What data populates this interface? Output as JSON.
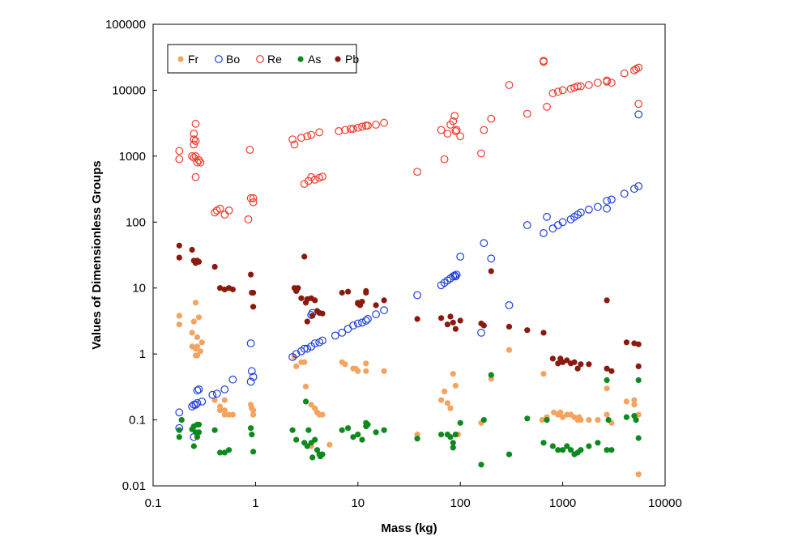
{
  "chart_data": {
    "type": "scatter",
    "xscale": "log",
    "yscale": "log",
    "xlabel": "Mass (kg)",
    "ylabel": "Values of Dimensionless Groups",
    "xlim": [
      0.1,
      10000
    ],
    "ylim": [
      0.01,
      100000
    ],
    "xticks": [
      "0.1",
      "1",
      "10",
      "100",
      "1000",
      "10000"
    ],
    "yticks": [
      "0.01",
      "0.1",
      "1",
      "10",
      "100",
      "1000",
      "10000",
      "100000"
    ],
    "grid": false,
    "legend_position": "top-left",
    "series": [
      {
        "name": "Fr",
        "color": "#f4a460",
        "marker": "filled",
        "x": [
          0.18,
          0.18,
          0.24,
          0.24,
          0.25,
          0.26,
          0.26,
          0.27,
          0.27,
          0.27,
          0.28,
          0.29,
          0.3,
          0.4,
          0.45,
          0.45,
          0.5,
          0.5,
          0.5,
          0.55,
          0.6,
          0.9,
          0.92,
          0.95,
          0.95,
          2.4,
          2.5,
          2.8,
          3,
          3.1,
          3.5,
          3.8,
          4,
          4.2,
          4.5,
          7,
          7.5,
          9,
          9.5,
          10,
          12,
          12,
          18,
          38,
          65,
          70,
          75,
          80,
          85,
          90,
          95,
          160,
          200,
          300,
          630,
          650,
          700,
          820,
          900,
          950,
          1000,
          1100,
          1200,
          1300,
          1400,
          1450,
          1500,
          1800,
          2200,
          2700,
          2700,
          3000,
          4200,
          5000,
          5000,
          5500,
          5500,
          0.19,
          0.26,
          3.5,
          5.3
        ],
        "y": [
          3.8,
          2.8,
          2.1,
          1.3,
          3.1,
          1.2,
          6,
          1.8,
          1.3,
          0.95,
          3.6,
          1.1,
          1.5,
          0.2,
          0.16,
          0.14,
          0.14,
          0.12,
          0.2,
          0.12,
          0.12,
          0.17,
          0.15,
          0.12,
          0.14,
          0.9,
          0.65,
          0.75,
          0.75,
          0.32,
          0.17,
          0.15,
          0.13,
          0.12,
          0.12,
          0.75,
          0.7,
          0.6,
          0.6,
          0.55,
          0.72,
          0.55,
          0.55,
          0.06,
          0.2,
          0.27,
          0.18,
          0.15,
          0.5,
          0.33,
          0.06,
          0.09,
          0.42,
          1.15,
          0.1,
          0.5,
          0.11,
          0.13,
          0.12,
          0.13,
          0.11,
          0.12,
          0.12,
          0.11,
          0.1,
          0.11,
          0.1,
          0.1,
          0.1,
          0.3,
          0.12,
          0.09,
          0.19,
          0.2,
          0.17,
          0.12,
          0.015,
          0.1,
          0.95,
          0.04,
          0.042
        ]
      },
      {
        "name": "Bo",
        "color": "#1f3fdd",
        "marker": "open",
        "x": [
          0.18,
          0.18,
          0.24,
          0.25,
          0.26,
          0.27,
          0.28,
          0.27,
          0.25,
          0.3,
          0.38,
          0.42,
          0.5,
          0.6,
          0.9,
          0.92,
          0.95,
          0.9,
          2.3,
          2.5,
          2.8,
          3,
          3.2,
          3.5,
          3.8,
          4.2,
          4.5,
          6,
          7,
          8,
          9,
          10,
          11,
          12,
          12.5,
          15,
          18,
          38,
          65,
          70,
          75,
          80,
          85,
          88,
          90,
          92,
          100,
          170,
          200,
          300,
          160,
          450,
          650,
          700,
          800,
          900,
          1000,
          1200,
          1300,
          1400,
          1500,
          1800,
          2200,
          2700,
          2700,
          3000,
          4000,
          5000,
          5500,
          5500,
          3.5,
          3.6
        ],
        "y": [
          0.13,
          0.075,
          0.16,
          0.17,
          0.17,
          0.18,
          0.29,
          0.28,
          0.055,
          0.19,
          0.24,
          0.25,
          0.29,
          0.41,
          1.45,
          0.55,
          0.45,
          0.38,
          0.9,
          1,
          1.1,
          1.2,
          1.2,
          1.3,
          1.45,
          1.5,
          1.6,
          1.9,
          2.1,
          2.4,
          2.7,
          2.9,
          3,
          3.2,
          3.4,
          4,
          4.6,
          7.8,
          11,
          12,
          13,
          14,
          15,
          15.5,
          15,
          16,
          30,
          48,
          28,
          5.5,
          2.1,
          90,
          68,
          120,
          80,
          90,
          100,
          110,
          120,
          130,
          140,
          155,
          170,
          160,
          210,
          220,
          270,
          320,
          350,
          4300,
          3.9,
          4.2
        ]
      },
      {
        "name": "Re",
        "color": "#ee3a2a",
        "marker": "open",
        "x": [
          0.18,
          0.18,
          0.24,
          0.25,
          0.25,
          0.26,
          0.26,
          0.27,
          0.28,
          0.29,
          0.25,
          0.26,
          0.4,
          0.42,
          0.45,
          0.5,
          0.55,
          0.85,
          0.9,
          0.95,
          0.95,
          0.88,
          2.3,
          2.4,
          2.8,
          3.2,
          3.5,
          4.2,
          3,
          3.3,
          3.5,
          3.8,
          4.2,
          4.5,
          6.5,
          7.5,
          8.5,
          9,
          10,
          11,
          12,
          12.5,
          15,
          18,
          38,
          65,
          70,
          75,
          80,
          85,
          88,
          90,
          92,
          100,
          160,
          170,
          200,
          300,
          450,
          650,
          650,
          700,
          800,
          900,
          1000,
          1200,
          1300,
          1400,
          1500,
          1800,
          2200,
          2700,
          2700,
          3000,
          4000,
          5000,
          5200,
          5500,
          5500,
          0.26,
          0.25
        ],
        "y": [
          1200,
          900,
          1000,
          1500,
          1800,
          3100,
          1000,
          800,
          870,
          800,
          950,
          480,
          140,
          150,
          160,
          130,
          150,
          110,
          230,
          230,
          200,
          1250,
          1800,
          1500,
          1900,
          2000,
          2100,
          2300,
          380,
          420,
          480,
          440,
          470,
          490,
          2400,
          2500,
          2600,
          2600,
          2700,
          2800,
          2900,
          2900,
          3000,
          3200,
          580,
          2500,
          900,
          2200,
          3000,
          3400,
          4100,
          2400,
          2500,
          2000,
          1100,
          2500,
          3700,
          12000,
          4400,
          27000,
          28000,
          5600,
          9000,
          9500,
          10000,
          10500,
          11000,
          11500,
          11500,
          12000,
          13000,
          13500,
          14000,
          13000,
          18000,
          20000,
          21000,
          22000,
          6200,
          1700,
          2200
        ]
      },
      {
        "name": "As",
        "color": "#0d8a1e",
        "marker": "filled",
        "x": [
          0.18,
          0.18,
          0.24,
          0.25,
          0.26,
          0.27,
          0.28,
          0.25,
          0.28,
          0.4,
          0.45,
          0.5,
          0.55,
          0.9,
          0.92,
          0.95,
          2.3,
          2.5,
          3,
          3.1,
          3.2,
          3.5,
          3.8,
          4,
          4.2,
          4.5,
          7,
          8,
          9,
          10,
          11,
          12,
          12.5,
          15,
          18,
          38,
          65,
          75,
          80,
          85,
          90,
          100,
          160,
          170,
          200,
          300,
          450,
          650,
          700,
          800,
          900,
          1000,
          1100,
          1200,
          1300,
          1400,
          1500,
          1800,
          2200,
          2700,
          2700,
          2800,
          3000,
          4200,
          5000,
          5200,
          5500,
          5500,
          0.27,
          0.19,
          3.6,
          3.3,
          4.3,
          12,
          85
        ],
        "y": [
          0.07,
          0.055,
          0.072,
          0.04,
          0.065,
          0.085,
          0.065,
          0.08,
          0.085,
          0.07,
          0.032,
          0.032,
          0.035,
          0.075,
          0.06,
          0.033,
          0.07,
          0.05,
          0.045,
          0.19,
          0.04,
          0.045,
          0.05,
          0.035,
          0.03,
          0.03,
          0.07,
          0.075,
          0.055,
          0.06,
          0.05,
          0.08,
          0.085,
          0.065,
          0.07,
          0.052,
          0.06,
          0.06,
          0.055,
          0.045,
          0.06,
          0.09,
          0.021,
          0.1,
          0.48,
          0.03,
          0.105,
          0.045,
          0.1,
          0.04,
          0.035,
          0.035,
          0.04,
          0.035,
          0.03,
          0.032,
          0.035,
          0.04,
          0.045,
          0.4,
          0.035,
          0.1,
          0.035,
          0.11,
          0.115,
          0.1,
          0.4,
          0.053,
          0.055,
          0.1,
          0.027,
          0.07,
          0.028,
          0.09,
          0.038
        ]
      },
      {
        "name": "Pb",
        "color": "#8b1a0e",
        "marker": "filled",
        "x": [
          0.18,
          0.18,
          0.24,
          0.25,
          0.26,
          0.27,
          0.28,
          0.4,
          0.45,
          0.5,
          0.55,
          0.6,
          0.9,
          0.92,
          0.95,
          0.95,
          2.4,
          2.5,
          2.8,
          3,
          3.1,
          3.2,
          3.5,
          3.8,
          3.6,
          4,
          4.2,
          4.5,
          7,
          8,
          10,
          10.5,
          11,
          12,
          12,
          15,
          18,
          38,
          65,
          75,
          80,
          85,
          90,
          100,
          160,
          170,
          200,
          300,
          450,
          650,
          800,
          900,
          950,
          1000,
          1100,
          1200,
          1300,
          1400,
          1500,
          1800,
          2700,
          2700,
          3000,
          4200,
          5000,
          5500,
          5500,
          3.2,
          2.6,
          10
        ],
        "y": [
          44,
          29,
          38,
          26,
          24,
          26,
          25,
          21,
          10,
          9.5,
          10,
          9.5,
          16,
          8.5,
          8.5,
          5.2,
          10,
          9,
          7,
          30,
          6,
          6.8,
          7,
          6.5,
          3.8,
          4.5,
          4.2,
          4.1,
          8.5,
          8.8,
          6,
          5.5,
          6.2,
          9,
          8.5,
          5.5,
          6.5,
          3.4,
          3.5,
          2.8,
          3.7,
          3,
          2.4,
          3.2,
          2.9,
          2.7,
          18,
          2.6,
          2.3,
          2.1,
          0.85,
          0.72,
          0.85,
          0.75,
          0.8,
          0.72,
          0.75,
          0.6,
          0.7,
          0.7,
          6.5,
          0.6,
          0.55,
          1.5,
          1.45,
          1.4,
          0.65,
          3.1,
          10,
          5.8
        ]
      }
    ]
  }
}
